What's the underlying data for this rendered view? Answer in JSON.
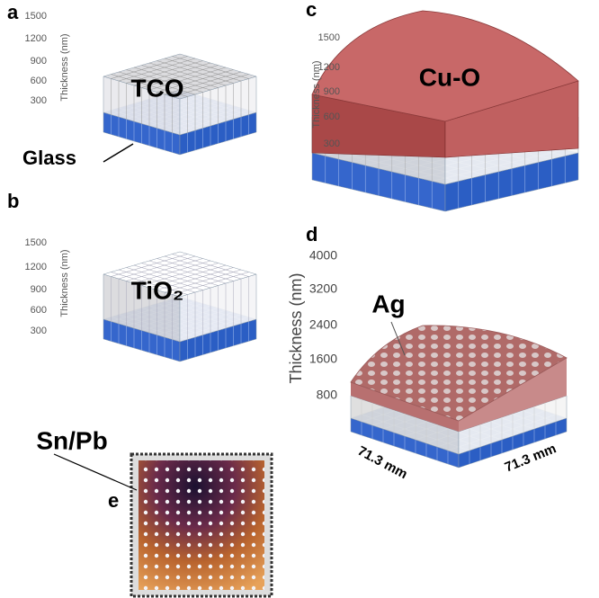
{
  "panels": [
    {
      "label": "a",
      "axis_title": "Thickness (nm)",
      "ticks": [
        1500,
        1200,
        900,
        600,
        300
      ],
      "layer": "TCO",
      "substrate": "Glass"
    },
    {
      "label": "b",
      "axis_title": "Thickness (nm)",
      "ticks": [
        1500,
        1200,
        900,
        600,
        300
      ],
      "layer": "TiO₂"
    },
    {
      "label": "c",
      "axis_title": "Thickness (nm)",
      "ticks": [
        1500,
        1200,
        900,
        600,
        300
      ],
      "layer": "Cu-O"
    },
    {
      "label": "d",
      "axis_title": "Thickness (nm)",
      "ticks": [
        4000,
        3200,
        2400,
        1600,
        800
      ],
      "layer": "Ag",
      "dimensions": [
        "71.3 mm",
        "71.3 mm"
      ]
    },
    {
      "label": "e",
      "layer": "Sn/Pb"
    }
  ]
}
